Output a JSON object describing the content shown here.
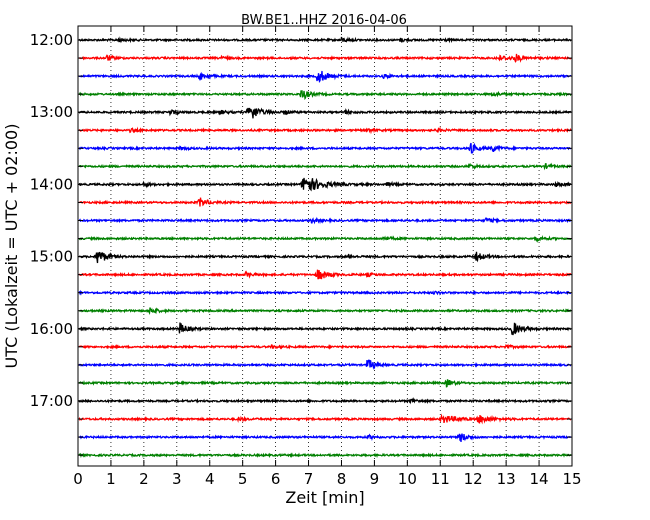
{
  "chart_data": {
    "type": "line",
    "title": "BW.BE1..HHZ 2016-04-06",
    "xlabel": "Zeit  [min]",
    "ylabel": "UTC (Lokalzeit = UTC + 02:00)",
    "xlim": [
      0,
      15
    ],
    "x_ticks": [
      "0",
      "1",
      "2",
      "3",
      "4",
      "5",
      "6",
      "7",
      "8",
      "9",
      "10",
      "11",
      "12",
      "13",
      "14",
      "15"
    ],
    "y_ticks": [
      "12:00",
      "13:00",
      "14:00",
      "15:00",
      "16:00",
      "17:00"
    ],
    "grid": "vertical-dotted",
    "trace_interval_min": 15,
    "series": [
      {
        "start": "12:00",
        "color": "#000000",
        "events": [
          [
            1.2,
            0.5,
            0.3
          ],
          [
            8.0,
            0.6,
            0.3
          ],
          [
            9.8,
            0.4,
            0.3
          ],
          [
            11.0,
            0.3,
            0.3
          ]
        ]
      },
      {
        "start": "12:15",
        "color": "#ff0000",
        "events": [
          [
            0.9,
            0.8,
            0.25
          ],
          [
            4.3,
            0.4,
            0.3
          ],
          [
            13.3,
            0.8,
            0.3
          ],
          [
            12.8,
            0.5,
            1.0
          ]
        ]
      },
      {
        "start": "12:30",
        "color": "#0000ff",
        "events": [
          [
            3.7,
            1.0,
            0.35
          ],
          [
            7.3,
            1.8,
            0.5
          ],
          [
            9.3,
            0.5,
            0.3
          ]
        ]
      },
      {
        "start": "12:45",
        "color": "#008000",
        "events": [
          [
            6.8,
            1.5,
            0.35
          ],
          [
            12.6,
            0.5,
            0.4
          ]
        ]
      },
      {
        "start": "13:00",
        "color": "#000000",
        "events": [
          [
            2.8,
            0.6,
            0.3
          ],
          [
            4.3,
            0.6,
            0.3
          ],
          [
            5.2,
            2.5,
            0.5
          ],
          [
            6.3,
            0.5,
            0.3
          ],
          [
            8.1,
            0.5,
            0.3
          ]
        ]
      },
      {
        "start": "13:15",
        "color": "#ff0000",
        "events": [
          [
            1.6,
            0.4,
            0.3
          ],
          [
            8.8,
            0.4,
            0.3
          ],
          [
            10.9,
            0.4,
            0.3
          ]
        ]
      },
      {
        "start": "13:30",
        "color": "#0000ff",
        "events": [
          [
            3.1,
            0.4,
            0.3
          ],
          [
            11.9,
            1.6,
            0.3
          ],
          [
            12.6,
            0.8,
            0.3
          ]
        ]
      },
      {
        "start": "13:45",
        "color": "#008000",
        "events": [
          [
            11.9,
            0.5,
            0.3
          ],
          [
            14.2,
            0.5,
            0.3
          ]
        ]
      },
      {
        "start": "14:00",
        "color": "#000000",
        "events": [
          [
            2.0,
            0.4,
            0.3
          ],
          [
            6.9,
            2.4,
            0.9
          ],
          [
            9.4,
            0.4,
            0.3
          ],
          [
            14.5,
            0.5,
            0.3
          ]
        ]
      },
      {
        "start": "14:15",
        "color": "#ff0000",
        "events": [
          [
            3.7,
            1.2,
            0.4
          ]
        ]
      },
      {
        "start": "14:30",
        "color": "#0000ff",
        "events": [
          [
            7.1,
            0.5,
            0.3
          ],
          [
            12.4,
            0.6,
            0.3
          ]
        ]
      },
      {
        "start": "14:45",
        "color": "#008000",
        "events": [
          [
            9.3,
            0.5,
            0.3
          ],
          [
            13.9,
            0.5,
            0.4
          ]
        ]
      },
      {
        "start": "15:00",
        "color": "#000000",
        "events": [
          [
            0.6,
            2.0,
            0.45
          ],
          [
            8.2,
            0.4,
            0.3
          ],
          [
            12.1,
            1.1,
            0.4
          ]
        ]
      },
      {
        "start": "15:15",
        "color": "#ff0000",
        "events": [
          [
            5.1,
            0.7,
            0.25
          ],
          [
            7.3,
            1.4,
            0.5
          ],
          [
            8.8,
            0.4,
            0.3
          ]
        ]
      },
      {
        "start": "15:30",
        "color": "#0000ff",
        "events": [
          [
            10.8,
            0.3,
            0.3
          ]
        ]
      },
      {
        "start": "15:45",
        "color": "#008000",
        "events": [
          [
            2.2,
            0.8,
            0.3
          ]
        ]
      },
      {
        "start": "16:00",
        "color": "#000000",
        "events": [
          [
            3.1,
            1.5,
            0.35
          ],
          [
            13.2,
            1.8,
            0.45
          ]
        ]
      },
      {
        "start": "16:15",
        "color": "#ff0000",
        "events": [
          [
            5.9,
            0.4,
            0.3
          ],
          [
            13.0,
            0.4,
            0.3
          ]
        ]
      },
      {
        "start": "16:30",
        "color": "#0000ff",
        "events": [
          [
            8.8,
            1.6,
            0.3
          ]
        ]
      },
      {
        "start": "16:45",
        "color": "#008000",
        "events": [
          [
            11.2,
            0.9,
            0.3
          ]
        ]
      },
      {
        "start": "17:00",
        "color": "#000000",
        "events": [
          [
            10.1,
            0.5,
            0.3
          ]
        ]
      },
      {
        "start": "17:15",
        "color": "#ff0000",
        "events": [
          [
            4.9,
            0.4,
            0.3
          ],
          [
            11.1,
            1.0,
            0.8
          ],
          [
            12.2,
            1.0,
            0.6
          ]
        ]
      },
      {
        "start": "17:30",
        "color": "#0000ff",
        "events": [
          [
            8.8,
            0.5,
            0.25
          ],
          [
            11.6,
            1.3,
            0.35
          ]
        ]
      },
      {
        "start": "17:45",
        "color": "#008000",
        "events": []
      }
    ]
  }
}
